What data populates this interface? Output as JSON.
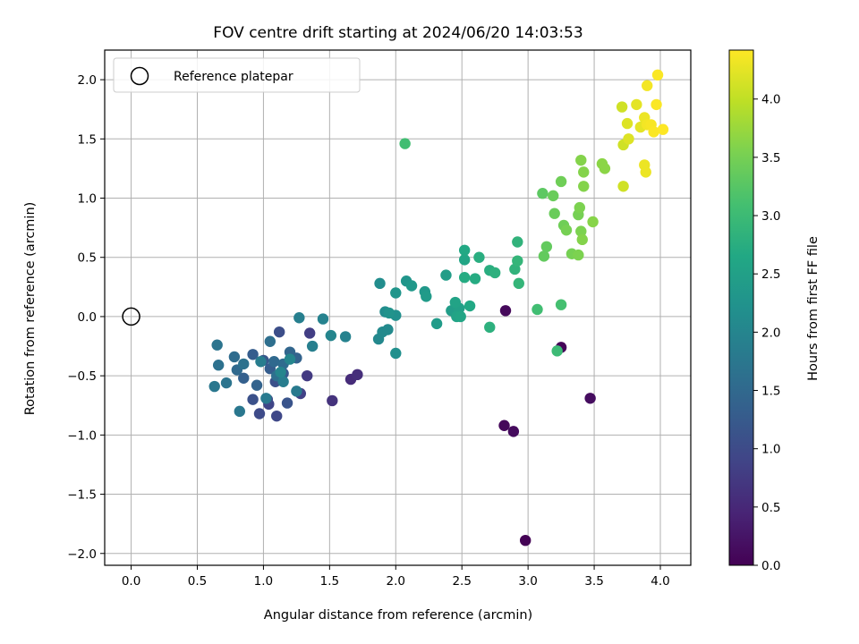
{
  "chart_data": {
    "type": "scatter",
    "title": "FOV centre drift starting at 2024/06/20 14:03:53",
    "xlabel": "Angular distance from reference (arcmin)",
    "ylabel": "Rotation from reference (arcmin)",
    "xlim": [
      -0.2,
      4.23
    ],
    "ylim": [
      -2.1,
      2.25
    ],
    "x_ticks": [
      "0.0",
      "0.5",
      "1.0",
      "1.5",
      "2.0",
      "2.5",
      "3.0",
      "3.5",
      "4.0"
    ],
    "y_ticks": [
      "−2.0",
      "−1.5",
      "−1.0",
      "−0.5",
      "0.0",
      "0.5",
      "1.0",
      "1.5",
      "2.0"
    ],
    "grid": true,
    "legend": {
      "position": "top-left",
      "entries": [
        "Reference platepar"
      ]
    },
    "colorbar": {
      "label": "Hours from first FF file",
      "range": [
        0,
        4.42
      ],
      "ticks": [
        "0.0",
        "0.5",
        "1.0",
        "1.5",
        "2.0",
        "2.5",
        "3.0",
        "3.5",
        "4.0"
      ],
      "colormap": "viridis"
    },
    "reference_point": {
      "x": 0.0,
      "y": 0.0,
      "name": "Reference platepar"
    },
    "points": [
      [
        2.98,
        -1.89,
        0.02
      ],
      [
        2.82,
        -0.92,
        0.08
      ],
      [
        2.89,
        -0.97,
        0.12
      ],
      [
        3.47,
        -0.69,
        0.15
      ],
      [
        3.25,
        -0.26,
        0.05
      ],
      [
        2.83,
        0.05,
        0.1
      ],
      [
        1.66,
        -0.53,
        0.55
      ],
      [
        1.71,
        -0.49,
        0.6
      ],
      [
        1.52,
        -0.71,
        0.65
      ],
      [
        1.33,
        -0.5,
        0.75
      ],
      [
        1.35,
        -0.14,
        0.8
      ],
      [
        1.28,
        -0.65,
        0.85
      ],
      [
        1.04,
        -0.74,
        0.9
      ],
      [
        1.1,
        -0.84,
        0.95
      ],
      [
        0.97,
        -0.82,
        1.0
      ],
      [
        1.03,
        -0.7,
        1.0
      ],
      [
        1.12,
        -0.13,
        1.05
      ],
      [
        0.92,
        -0.7,
        1.1
      ],
      [
        1.18,
        -0.73,
        1.15
      ],
      [
        1.09,
        -0.55,
        1.1
      ],
      [
        1.0,
        -0.37,
        1.2
      ],
      [
        1.15,
        -0.48,
        1.25
      ],
      [
        1.05,
        -0.44,
        1.3
      ],
      [
        0.92,
        -0.32,
        1.3
      ],
      [
        0.85,
        -0.52,
        1.35
      ],
      [
        1.25,
        -0.35,
        1.4
      ],
      [
        0.95,
        -0.58,
        1.4
      ],
      [
        1.2,
        -0.3,
        1.45
      ],
      [
        1.08,
        -0.38,
        1.5
      ],
      [
        0.8,
        -0.45,
        1.5
      ],
      [
        0.78,
        -0.34,
        1.55
      ],
      [
        1.15,
        -0.4,
        1.55
      ],
      [
        1.1,
        -0.5,
        1.6
      ],
      [
        1.05,
        -0.21,
        1.6
      ],
      [
        0.85,
        -0.4,
        1.65
      ],
      [
        0.66,
        -0.41,
        1.65
      ],
      [
        0.65,
        -0.24,
        1.7
      ],
      [
        0.72,
        -0.56,
        1.7
      ],
      [
        0.82,
        -0.8,
        1.75
      ],
      [
        0.63,
        -0.59,
        1.75
      ],
      [
        1.25,
        -0.63,
        1.8
      ],
      [
        1.02,
        -0.69,
        1.8
      ],
      [
        1.15,
        -0.55,
        1.85
      ],
      [
        0.98,
        -0.38,
        1.85
      ],
      [
        1.27,
        -0.01,
        1.9
      ],
      [
        1.37,
        -0.25,
        1.9
      ],
      [
        1.45,
        -0.02,
        1.95
      ],
      [
        1.62,
        -0.17,
        1.95
      ],
      [
        1.51,
        -0.16,
        2.0
      ],
      [
        1.13,
        -0.47,
        2.0
      ],
      [
        1.2,
        -0.36,
        2.0
      ],
      [
        1.87,
        -0.19,
        2.05
      ],
      [
        1.9,
        -0.13,
        2.1
      ],
      [
        1.94,
        -0.11,
        2.1
      ],
      [
        1.92,
        0.04,
        2.15
      ],
      [
        1.88,
        0.28,
        2.15
      ],
      [
        2.0,
        -0.31,
        2.2
      ],
      [
        2.0,
        0.01,
        2.2
      ],
      [
        1.95,
        0.03,
        2.25
      ],
      [
        2.0,
        0.2,
        2.3
      ],
      [
        2.08,
        0.3,
        2.3
      ],
      [
        2.12,
        0.26,
        2.35
      ],
      [
        2.22,
        0.21,
        2.35
      ],
      [
        2.23,
        0.17,
        2.4
      ],
      [
        2.31,
        -0.06,
        2.4
      ],
      [
        2.38,
        0.35,
        2.45
      ],
      [
        2.42,
        0.05,
        2.45
      ],
      [
        2.47,
        0.02,
        2.5
      ],
      [
        2.48,
        0.07,
        2.5
      ],
      [
        2.45,
        0.12,
        2.55
      ],
      [
        2.46,
        0.0,
        2.55
      ],
      [
        2.49,
        0.0,
        2.6
      ],
      [
        2.52,
        0.48,
        2.6
      ],
      [
        2.52,
        0.56,
        2.65
      ],
      [
        2.56,
        0.09,
        2.65
      ],
      [
        2.52,
        0.33,
        2.7
      ],
      [
        2.6,
        0.32,
        2.7
      ],
      [
        2.63,
        0.5,
        2.75
      ],
      [
        2.71,
        0.39,
        2.75
      ],
      [
        2.75,
        0.37,
        2.8
      ],
      [
        2.71,
        -0.09,
        2.8
      ],
      [
        2.9,
        0.4,
        2.85
      ],
      [
        2.92,
        0.63,
        2.85
      ],
      [
        2.92,
        0.47,
        2.9
      ],
      [
        2.93,
        0.28,
        2.9
      ],
      [
        3.22,
        -0.29,
        3.0
      ],
      [
        3.07,
        0.06,
        3.05
      ],
      [
        2.07,
        1.46,
        3.05
      ],
      [
        3.25,
        0.1,
        3.1
      ],
      [
        3.11,
        1.04,
        3.3
      ],
      [
        3.12,
        0.51,
        3.35
      ],
      [
        3.14,
        0.59,
        3.35
      ],
      [
        3.2,
        0.87,
        3.4
      ],
      [
        3.19,
        1.02,
        3.4
      ],
      [
        3.25,
        1.14,
        3.45
      ],
      [
        3.27,
        0.77,
        3.45
      ],
      [
        3.29,
        0.73,
        3.5
      ],
      [
        3.33,
        0.53,
        3.5
      ],
      [
        3.38,
        0.86,
        3.5
      ],
      [
        3.38,
        0.52,
        3.55
      ],
      [
        3.39,
        0.92,
        3.55
      ],
      [
        3.4,
        0.72,
        3.55
      ],
      [
        3.41,
        0.65,
        3.6
      ],
      [
        3.42,
        1.1,
        3.6
      ],
      [
        3.42,
        1.22,
        3.6
      ],
      [
        3.4,
        1.32,
        3.6
      ],
      [
        3.49,
        0.8,
        3.62
      ],
      [
        3.56,
        1.29,
        3.65
      ],
      [
        3.58,
        1.25,
        3.65
      ],
      [
        3.71,
        1.77,
        4.1
      ],
      [
        3.72,
        1.45,
        4.1
      ],
      [
        3.72,
        1.1,
        4.1
      ],
      [
        3.76,
        1.5,
        4.2
      ],
      [
        3.75,
        1.63,
        4.2
      ],
      [
        3.82,
        1.79,
        4.25
      ],
      [
        3.85,
        1.6,
        4.25
      ],
      [
        3.88,
        1.28,
        4.3
      ],
      [
        3.88,
        1.68,
        4.3
      ],
      [
        3.89,
        1.22,
        4.3
      ],
      [
        3.9,
        1.62,
        4.35
      ],
      [
        3.9,
        1.95,
        4.35
      ],
      [
        3.93,
        1.62,
        4.38
      ],
      [
        3.95,
        1.56,
        4.4
      ],
      [
        3.97,
        1.79,
        4.4
      ],
      [
        3.98,
        2.04,
        4.4
      ],
      [
        4.02,
        1.58,
        4.42
      ]
    ]
  }
}
